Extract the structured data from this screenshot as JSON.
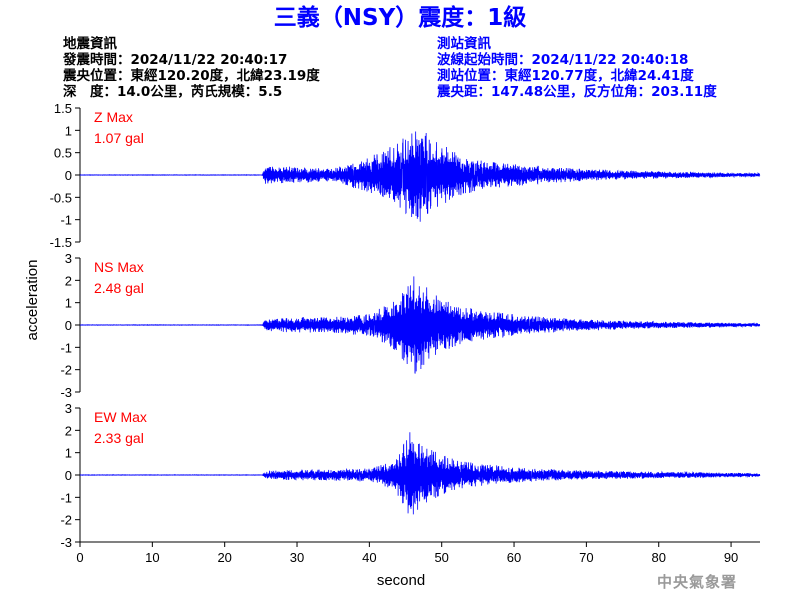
{
  "title": "三義（NSY）震度：1級",
  "earthquake_info": {
    "heading": "地震資訊",
    "origin_time": "發震時間：2024/11/22 20:40:17",
    "epicenter": "震央位置：東經120.20度，北緯23.19度",
    "depth_magnitude": "深　度：14.0公里，芮氏規模：5.5"
  },
  "station_info": {
    "heading": "測站資訊",
    "wave_start": "波線起始時間：2024/11/22 20:40:18",
    "station_location": "測站位置：東經120.77度，北緯24.41度",
    "distance_azimuth": "震央距：147.48公里，反方位角：203.11度"
  },
  "credit": "中央氣象署",
  "colors": {
    "title": "#0000ff",
    "trace": "#0000ff",
    "max_label": "#ff0000",
    "axis": "#000000",
    "credit": "#9a9a9a"
  },
  "chart_data": {
    "type": "line",
    "xlabel": "second",
    "ylabel": "acceleration",
    "xlim": [
      0,
      94
    ],
    "xticks": [
      0,
      10,
      20,
      30,
      40,
      50,
      60,
      70,
      80,
      90
    ],
    "grid": false,
    "channels": [
      {
        "name": "Z",
        "max_title": "Z Max",
        "max_value": "1.07 gal",
        "ylim": [
          -1.5,
          1.5
        ],
        "yticks": [
          -1.5,
          -1,
          -0.5,
          0,
          0.5,
          1,
          1.5
        ],
        "ytick_labels": [
          "-1.5",
          "-1",
          "-0.5",
          "0",
          "0.5",
          "1",
          "1.5"
        ],
        "envelope": [
          [
            0,
            0.005
          ],
          [
            25.2,
            0.005
          ],
          [
            25.6,
            0.25
          ],
          [
            27,
            0.2
          ],
          [
            30,
            0.18
          ],
          [
            35,
            0.15
          ],
          [
            38,
            0.3
          ],
          [
            42,
            0.55
          ],
          [
            45,
            0.85
          ],
          [
            47,
            1.07
          ],
          [
            49,
            0.8
          ],
          [
            52,
            0.5
          ],
          [
            55,
            0.35
          ],
          [
            60,
            0.25
          ],
          [
            65,
            0.18
          ],
          [
            70,
            0.13
          ],
          [
            80,
            0.08
          ],
          [
            90,
            0.05
          ],
          [
            94,
            0.04
          ]
        ]
      },
      {
        "name": "NS",
        "max_title": "NS Max",
        "max_value": "2.48 gal",
        "ylim": [
          -3,
          3
        ],
        "yticks": [
          -3,
          -2,
          -1,
          0,
          1,
          2,
          3
        ],
        "ytick_labels": [
          "-3",
          "-2",
          "-1",
          "0",
          "1",
          "2",
          "3"
        ],
        "envelope": [
          [
            0,
            0.01
          ],
          [
            25.2,
            0.01
          ],
          [
            25.6,
            0.25
          ],
          [
            27,
            0.3
          ],
          [
            30,
            0.35
          ],
          [
            35,
            0.35
          ],
          [
            40,
            0.5
          ],
          [
            43,
            1.0
          ],
          [
            45,
            1.7
          ],
          [
            46.5,
            2.48
          ],
          [
            48,
            1.8
          ],
          [
            50,
            1.2
          ],
          [
            53,
            0.8
          ],
          [
            57,
            0.6
          ],
          [
            62,
            0.4
          ],
          [
            70,
            0.25
          ],
          [
            80,
            0.15
          ],
          [
            90,
            0.1
          ],
          [
            94,
            0.08
          ]
        ]
      },
      {
        "name": "EW",
        "max_title": "EW Max",
        "max_value": "2.33 gal",
        "ylim": [
          -3,
          3
        ],
        "yticks": [
          -3,
          -2,
          -1,
          0,
          1,
          2,
          3
        ],
        "ytick_labels": [
          "-3",
          "-2",
          "-1",
          "0",
          "1",
          "2",
          "3"
        ],
        "envelope": [
          [
            0,
            0.01
          ],
          [
            25.2,
            0.01
          ],
          [
            25.6,
            0.15
          ],
          [
            27,
            0.2
          ],
          [
            30,
            0.25
          ],
          [
            35,
            0.25
          ],
          [
            40,
            0.3
          ],
          [
            43,
            0.6
          ],
          [
            44.5,
            1.2
          ],
          [
            45.8,
            2.33
          ],
          [
            47,
            1.4
          ],
          [
            50,
            0.9
          ],
          [
            53,
            0.6
          ],
          [
            57,
            0.45
          ],
          [
            62,
            0.3
          ],
          [
            70,
            0.2
          ],
          [
            80,
            0.15
          ],
          [
            90,
            0.1
          ],
          [
            94,
            0.08
          ]
        ]
      }
    ]
  }
}
